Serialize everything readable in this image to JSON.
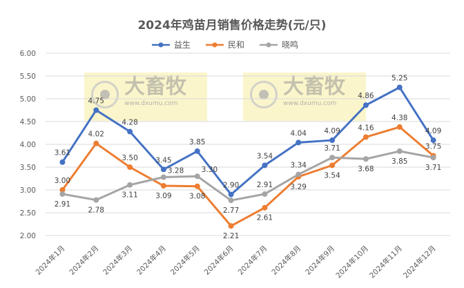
{
  "watermark": {
    "text": "大畜牧",
    "url": "www.dxumu.com"
  },
  "chart_data": {
    "type": "line",
    "title": "2024年鸡苗月销售价格走势(元/只)",
    "categories": [
      "2024年1月",
      "2024年2月",
      "2024年3月",
      "2024年4月",
      "2024年5月",
      "2024年6月",
      "2024年7月",
      "2024年8月",
      "2024年9月",
      "2024年10月",
      "2024年11月",
      "2024年12月"
    ],
    "series": [
      {
        "name": "益生",
        "color": "#4472C4",
        "values": [
          3.61,
          4.75,
          4.28,
          3.45,
          3.85,
          2.9,
          3.54,
          4.04,
          4.09,
          4.86,
          5.25,
          4.09
        ]
      },
      {
        "name": "民和",
        "color": "#ED7D31",
        "values": [
          3.0,
          4.02,
          3.5,
          3.09,
          3.08,
          2.21,
          2.61,
          3.29,
          3.54,
          4.16,
          4.38,
          3.75
        ]
      },
      {
        "name": "晓鸣",
        "color": "#A5A5A5",
        "values": [
          2.91,
          2.78,
          3.11,
          3.28,
          3.3,
          2.77,
          2.91,
          3.34,
          3.71,
          3.68,
          3.85,
          3.71
        ]
      }
    ],
    "yticks": [
      "2.00",
      "2.50",
      "3.00",
      "3.50",
      "4.00",
      "4.50",
      "5.00",
      "5.50",
      "6.00"
    ],
    "ylim": [
      2.0,
      6.0
    ],
    "grid": true,
    "legend": "top",
    "xlabel": "",
    "ylabel": ""
  }
}
